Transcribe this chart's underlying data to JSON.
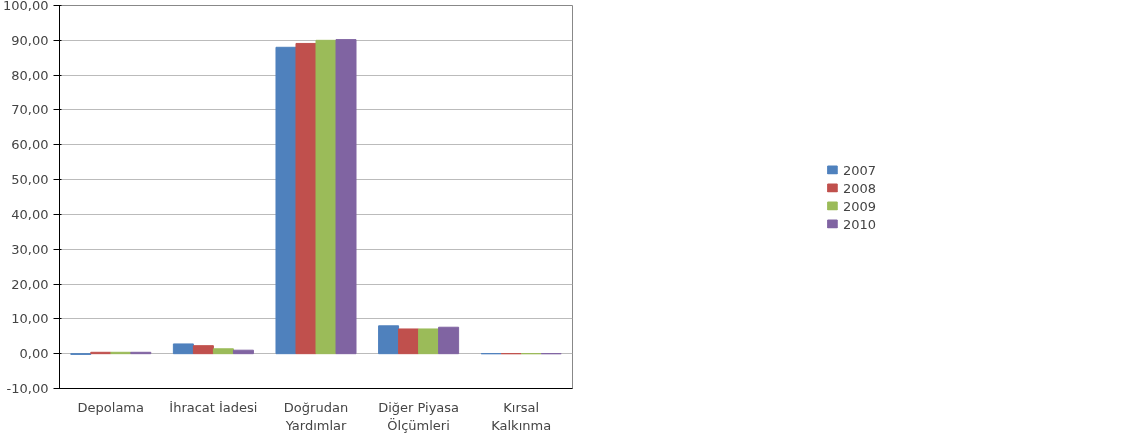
{
  "chart_data": {
    "type": "bar",
    "categories": [
      "Depolama",
      "İhracat İadesi",
      "Doğrudan Yardımlar",
      "Diğer Piyasa Ölçümleri",
      "Kırsal Kalkınma"
    ],
    "series": [
      {
        "name": "2007",
        "color": "#4f81bd",
        "values": [
          -0.2,
          2.8,
          88.0,
          8.0,
          0
        ]
      },
      {
        "name": "2008",
        "color": "#c0504d",
        "values": [
          0.4,
          2.3,
          89.1,
          7.1,
          0
        ]
      },
      {
        "name": "2009",
        "color": "#9bbb59",
        "values": [
          0.4,
          1.4,
          90.0,
          7.1,
          0
        ]
      },
      {
        "name": "2010",
        "color": "#8064a2",
        "values": [
          0.4,
          1.0,
          90.2,
          7.6,
          0
        ]
      }
    ],
    "ylim": [
      -10,
      100
    ],
    "yticks": [
      {
        "value": -10,
        "label": "-10,00"
      },
      {
        "value": 0,
        "label": "0,00"
      },
      {
        "value": 10,
        "label": "10,00"
      },
      {
        "value": 20,
        "label": "20,00"
      },
      {
        "value": 30,
        "label": "30,00"
      },
      {
        "value": 40,
        "label": "40,00"
      },
      {
        "value": 50,
        "label": "50,00"
      },
      {
        "value": 60,
        "label": "60,00"
      },
      {
        "value": 70,
        "label": "70,00"
      },
      {
        "value": 80,
        "label": "80,00"
      },
      {
        "value": 90,
        "label": "90,00"
      },
      {
        "value": 100,
        "label": "100,00"
      }
    ],
    "grid": "y",
    "legend": "right"
  }
}
